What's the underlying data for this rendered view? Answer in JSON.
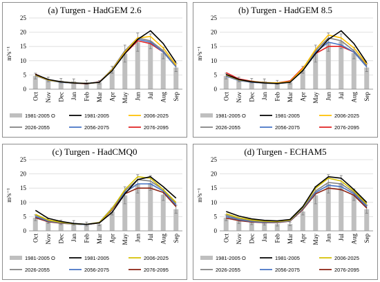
{
  "chart_data": [
    {
      "type": "bar",
      "title": "(a) Turgen - HadGEM 2.6",
      "ylabel": "m³s⁻¹",
      "ylim": [
        0,
        25
      ],
      "yticks": [
        0,
        5,
        10,
        15,
        20,
        25
      ],
      "grid": true,
      "legend_position": "bottom",
      "categories": [
        "Oct",
        "Nov",
        "Dec",
        "Jan",
        "Feb",
        "Mar",
        "Apr",
        "May",
        "Jun",
        "Jul",
        "Aug",
        "Sep"
      ],
      "bars": {
        "name": "1981-2005 O",
        "color": "#bfbfbf",
        "values": [
          4.6,
          3.4,
          3.0,
          2.8,
          2.4,
          2.4,
          6.8,
          12.5,
          16.5,
          16.8,
          12.7,
          7.6
        ],
        "errors": [
          1.0,
          0.8,
          0.8,
          0.8,
          0.7,
          0.6,
          1.2,
          3.0,
          3.2,
          2.6,
          2.0,
          1.4
        ]
      },
      "series": [
        {
          "name": "1981-2005",
          "color": "#000000",
          "values": [
            5.2,
            3.4,
            2.6,
            2.2,
            2.0,
            2.4,
            6.5,
            12.5,
            17.5,
            20.5,
            16.0,
            9.3
          ]
        },
        {
          "name": "2006-2025",
          "color": "#ffc000",
          "values": [
            5.0,
            3.2,
            2.6,
            2.2,
            2.0,
            2.4,
            6.8,
            13.0,
            18.0,
            18.5,
            14.5,
            8.5
          ]
        },
        {
          "name": "2026-2055",
          "color": "#808080",
          "values": [
            4.8,
            3.2,
            2.5,
            2.1,
            2.0,
            2.4,
            7.0,
            13.5,
            18.0,
            17.0,
            13.5,
            8.0
          ]
        },
        {
          "name": "2056-2075",
          "color": "#4472c4",
          "values": [
            4.8,
            3.1,
            2.4,
            2.1,
            2.0,
            2.5,
            7.0,
            13.5,
            17.5,
            16.5,
            13.0,
            7.8
          ]
        },
        {
          "name": "2076-2095",
          "color": "#e02020",
          "values": [
            5.3,
            3.2,
            2.5,
            2.1,
            1.9,
            2.6,
            6.8,
            12.5,
            17.0,
            16.0,
            13.0,
            8.0
          ]
        }
      ]
    },
    {
      "type": "bar",
      "title": "(b) Turgen - HadGEM 8.5",
      "ylabel": "m³s⁻¹",
      "ylim": [
        0,
        25
      ],
      "yticks": [
        0,
        5,
        10,
        15,
        20,
        25
      ],
      "grid": true,
      "legend_position": "bottom",
      "categories": [
        "Oct",
        "Nov",
        "Dec",
        "Jan",
        "Feb",
        "Mar",
        "Apr",
        "May",
        "Jun",
        "Jul",
        "Aug",
        "Sep"
      ],
      "bars": {
        "name": "1981-2005 O",
        "color": "#bfbfbf",
        "values": [
          4.6,
          3.4,
          3.0,
          2.8,
          2.4,
          2.4,
          6.8,
          12.5,
          16.5,
          16.8,
          12.7,
          7.6
        ],
        "errors": [
          1.0,
          0.8,
          0.8,
          0.8,
          0.7,
          0.6,
          1.2,
          3.0,
          3.2,
          2.6,
          2.0,
          1.4
        ]
      },
      "series": [
        {
          "name": "1981-2005",
          "color": "#000000",
          "values": [
            5.2,
            3.4,
            2.6,
            2.2,
            2.0,
            2.4,
            6.5,
            12.5,
            17.5,
            20.5,
            16.0,
            9.3
          ]
        },
        {
          "name": "2006-2025",
          "color": "#ffc000",
          "values": [
            5.0,
            3.3,
            2.7,
            2.3,
            2.2,
            2.6,
            7.2,
            14.0,
            19.0,
            18.0,
            14.5,
            8.8
          ]
        },
        {
          "name": "2026-2055",
          "color": "#808080",
          "values": [
            4.9,
            3.1,
            2.5,
            2.1,
            2.0,
            2.6,
            7.0,
            13.5,
            18.0,
            17.0,
            13.5,
            8.3
          ]
        },
        {
          "name": "2056-2075",
          "color": "#4472c4",
          "values": [
            4.6,
            3.0,
            2.4,
            2.1,
            2.0,
            2.5,
            6.8,
            13.0,
            16.5,
            15.5,
            13.0,
            7.8
          ]
        },
        {
          "name": "2076-2095",
          "color": "#e02020",
          "values": [
            5.8,
            3.6,
            2.8,
            2.3,
            2.2,
            2.9,
            7.5,
            12.5,
            15.0,
            15.0,
            13.0,
            8.5
          ]
        }
      ]
    },
    {
      "type": "bar",
      "title": "(c) Turgen - HadCMQ0",
      "ylabel": "m³s⁻¹",
      "ylim": [
        0,
        25
      ],
      "yticks": [
        0,
        5,
        10,
        15,
        20,
        25
      ],
      "grid": true,
      "legend_position": "bottom",
      "categories": [
        "Oct",
        "Nov",
        "Dec",
        "Jan",
        "Feb",
        "Mar",
        "Apr",
        "May",
        "Jun",
        "Jul",
        "Aug",
        "Sep"
      ],
      "bars": {
        "name": "1981-2005 O",
        "color": "#bfbfbf",
        "values": [
          4.6,
          3.4,
          3.0,
          2.8,
          2.4,
          2.4,
          6.8,
          12.5,
          16.5,
          16.8,
          12.7,
          7.6
        ],
        "errors": [
          1.0,
          0.8,
          0.8,
          0.8,
          0.7,
          0.6,
          1.2,
          3.0,
          3.2,
          2.6,
          2.0,
          1.4
        ]
      },
      "series": [
        {
          "name": "1981-2005",
          "color": "#000000",
          "values": [
            7.2,
            4.4,
            3.3,
            2.6,
            2.3,
            2.8,
            6.5,
            13.0,
            18.0,
            19.0,
            15.5,
            11.5
          ]
        },
        {
          "name": "2006-2025",
          "color": "#d4c000",
          "values": [
            5.8,
            3.8,
            3.0,
            2.5,
            2.3,
            2.9,
            7.8,
            14.5,
            19.0,
            18.5,
            14.5,
            10.0
          ]
        },
        {
          "name": "2026-2055",
          "color": "#808080",
          "values": [
            5.5,
            3.6,
            2.9,
            2.5,
            2.3,
            3.0,
            8.0,
            14.0,
            18.0,
            17.5,
            14.5,
            9.5
          ]
        },
        {
          "name": "2056-2075",
          "color": "#4472c4",
          "values": [
            5.0,
            3.4,
            2.8,
            2.4,
            2.2,
            2.9,
            7.8,
            13.5,
            16.5,
            16.5,
            14.0,
            9.0
          ]
        },
        {
          "name": "2076-2095",
          "color": "#8b2010",
          "values": [
            4.6,
            3.2,
            2.7,
            2.4,
            2.2,
            2.8,
            7.5,
            13.0,
            15.0,
            15.0,
            13.5,
            8.5
          ]
        }
      ]
    },
    {
      "type": "bar",
      "title": "(d) Turgen - ECHAM5",
      "ylabel": "m³s⁻¹",
      "ylim": [
        0,
        25
      ],
      "yticks": [
        0,
        5,
        10,
        15,
        20,
        25
      ],
      "grid": true,
      "legend_position": "bottom",
      "categories": [
        "Oct",
        "Nov",
        "Dec",
        "Jan",
        "Feb",
        "Mar",
        "Apr",
        "May",
        "Jun",
        "Jul",
        "Aug",
        "Sep"
      ],
      "bars": {
        "name": "1981-2005 O",
        "color": "#bfbfbf",
        "values": [
          4.6,
          3.4,
          3.0,
          2.8,
          2.4,
          2.4,
          6.8,
          12.5,
          16.5,
          16.8,
          12.7,
          7.6
        ],
        "errors": [
          1.0,
          0.8,
          0.8,
          0.8,
          0.7,
          0.6,
          1.2,
          3.0,
          3.2,
          2.6,
          2.0,
          1.4
        ]
      },
      "series": [
        {
          "name": "1981-2005",
          "color": "#000000",
          "values": [
            6.8,
            5.2,
            4.2,
            3.7,
            3.5,
            4.0,
            8.5,
            15.5,
            19.0,
            18.5,
            14.5,
            10.0
          ]
        },
        {
          "name": "2006-2025",
          "color": "#d4c000",
          "values": [
            6.0,
            4.6,
            3.8,
            3.4,
            3.3,
            3.8,
            8.3,
            15.0,
            18.5,
            17.5,
            14.0,
            9.5
          ]
        },
        {
          "name": "2026-2055",
          "color": "#808080",
          "values": [
            5.5,
            4.2,
            3.5,
            3.2,
            3.1,
            3.6,
            8.0,
            14.0,
            17.0,
            16.5,
            13.5,
            9.0
          ]
        },
        {
          "name": "2056-2075",
          "color": "#4472c4",
          "values": [
            5.0,
            3.9,
            3.3,
            3.0,
            3.0,
            3.5,
            7.8,
            13.5,
            16.0,
            15.5,
            13.0,
            8.5
          ]
        },
        {
          "name": "2076-2095",
          "color": "#8b2010",
          "values": [
            4.5,
            3.6,
            3.1,
            2.9,
            2.9,
            3.4,
            7.5,
            13.0,
            15.0,
            14.5,
            12.5,
            8.0
          ]
        }
      ]
    }
  ]
}
